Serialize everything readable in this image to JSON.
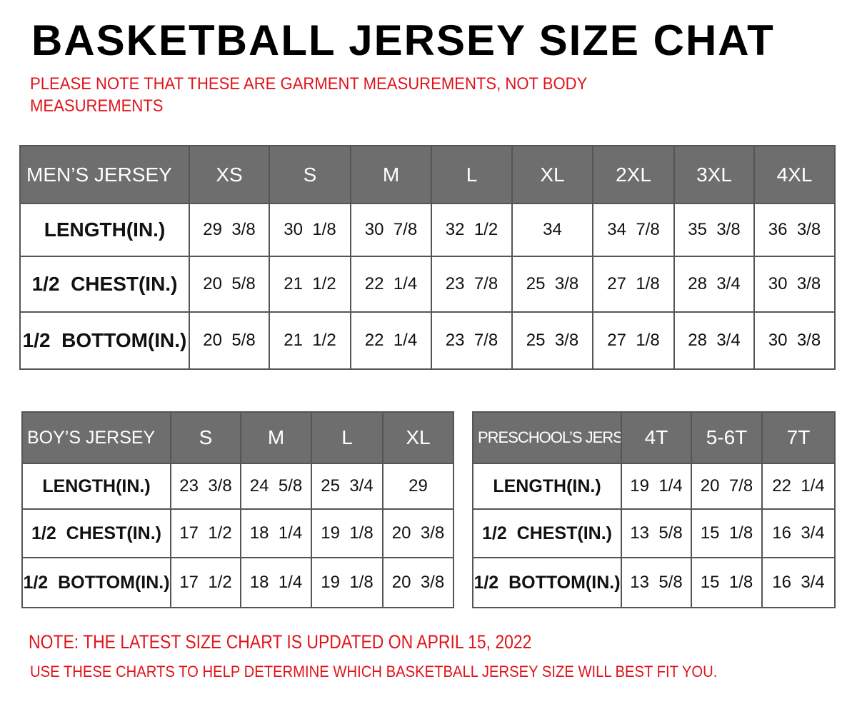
{
  "title": "BASKETBALL JERSEY SIZE CHAT",
  "notes": {
    "garment_line1": "PLEASE NOTE THAT THESE ARE GARMENT MEASUREMENTS, NOT BODY",
    "garment_line2": "MEASUREMENTS",
    "updated": "NOTE: THE LATEST SIZE CHART IS UPDATED ON APRIL 15, 2022",
    "usage": "USE THESE CHARTS TO HELP DETERMINE WHICH  BASKETBALL JERSEY  SIZE WILL BEST FIT YOU."
  },
  "colors": {
    "header_bg": "#6e6e6e",
    "note_red": "#e0141b"
  },
  "tables": {
    "men": {
      "header": [
        "MEN’S JERSEY",
        "XS",
        "S",
        "M",
        "L",
        "XL",
        "2XL",
        "3XL",
        "4XL"
      ],
      "rows": [
        [
          "LENGTH(IN.)",
          "29  3/8",
          "30  1/8",
          "30  7/8",
          "32  1/2",
          "34",
          "34  7/8",
          "35  3/8",
          "36  3/8"
        ],
        [
          "1/2  CHEST(IN.)",
          "20  5/8",
          "21  1/2",
          "22  1/4",
          "23  7/8",
          "25  3/8",
          "27  1/8",
          "28  3/4",
          "30  3/8"
        ],
        [
          "1/2  BOTTOM(IN.)",
          "20  5/8",
          "21  1/2",
          "22  1/4",
          "23  7/8",
          "25  3/8",
          "27  1/8",
          "28  3/4",
          "30  3/8"
        ]
      ]
    },
    "boy": {
      "header": [
        "BOY’S JERSEY",
        "S",
        "M",
        "L",
        "XL"
      ],
      "rows": [
        [
          "LENGTH(IN.)",
          "23  3/8",
          "24  5/8",
          "25  3/4",
          "29"
        ],
        [
          "1/2  CHEST(IN.)",
          "17  1/2",
          "18  1/4",
          "19  1/8",
          "20  3/8"
        ],
        [
          "1/2  BOTTOM(IN.)",
          "17  1/2",
          "18  1/4",
          "19  1/8",
          "20  3/8"
        ]
      ]
    },
    "pre": {
      "header": [
        "PRESCHOOL’S JERSEY",
        "4T",
        "5-6T",
        "7T"
      ],
      "rows": [
        [
          "LENGTH(IN.)",
          "19  1/4",
          "20  7/8",
          "22  1/4"
        ],
        [
          "1/2  CHEST(IN.)",
          "13  5/8",
          "15  1/8",
          "16  3/4"
        ],
        [
          "1/2  BOTTOM(IN.)",
          "13  5/8",
          "15  1/8",
          "16  3/4"
        ]
      ]
    }
  }
}
